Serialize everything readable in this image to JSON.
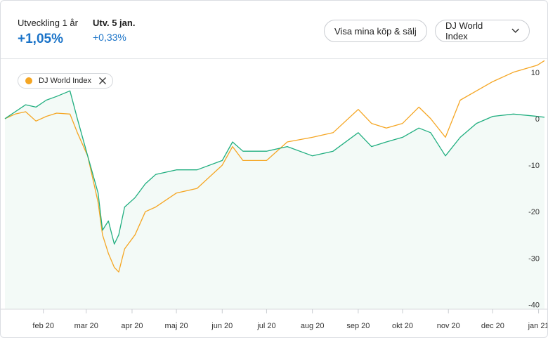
{
  "header": {
    "dev_1y_label": "Utveckling 1 år",
    "dev_1y_value": "+1,05%",
    "dev_jan5_label": "Utv. 5 jan.",
    "dev_jan5_value": "+0,33%",
    "show_trades_button": "Visa mina köp & sälj",
    "compare_select": "DJ World Index"
  },
  "legend": {
    "chip_label": "DJ World Index",
    "chip_color": "#f5a623"
  },
  "colors": {
    "positive": "#1a73c8",
    "primary_line": "#1fae7f",
    "compare_line": "#f5a623"
  },
  "chart_data": {
    "type": "line",
    "x_tick_labels": [
      "feb 20",
      "mar 20",
      "apr 20",
      "maj 20",
      "jun 20",
      "jul 20",
      "aug 20",
      "sep 20",
      "okt 20",
      "nov 20",
      "dec 20",
      "jan 21"
    ],
    "y_ticks": [
      10,
      0,
      -10,
      -20,
      -30,
      -40
    ],
    "ylim": [
      -41,
      13
    ],
    "grid": false,
    "series": [
      {
        "name": "",
        "color": "#1fae7f",
        "points": [
          [
            "2020-01-06",
            0
          ],
          [
            "2020-01-13",
            1.5
          ],
          [
            "2020-01-20",
            3
          ],
          [
            "2020-01-27",
            2.5
          ],
          [
            "2020-02-03",
            4
          ],
          [
            "2020-02-10",
            4.8
          ],
          [
            "2020-02-19",
            6
          ],
          [
            "2020-02-24",
            0
          ],
          [
            "2020-03-02",
            -8
          ],
          [
            "2020-03-09",
            -16
          ],
          [
            "2020-03-12",
            -24
          ],
          [
            "2020-03-16",
            -22
          ],
          [
            "2020-03-20",
            -27
          ],
          [
            "2020-03-23",
            -25
          ],
          [
            "2020-03-27",
            -19
          ],
          [
            "2020-04-03",
            -17
          ],
          [
            "2020-04-10",
            -14
          ],
          [
            "2020-04-17",
            -12
          ],
          [
            "2020-05-01",
            -11
          ],
          [
            "2020-05-15",
            -11
          ],
          [
            "2020-06-01",
            -9
          ],
          [
            "2020-06-08",
            -5
          ],
          [
            "2020-06-15",
            -7
          ],
          [
            "2020-07-01",
            -7
          ],
          [
            "2020-07-15",
            -6
          ],
          [
            "2020-08-01",
            -8
          ],
          [
            "2020-08-15",
            -7
          ],
          [
            "2020-09-01",
            -3
          ],
          [
            "2020-09-10",
            -6
          ],
          [
            "2020-09-20",
            -5
          ],
          [
            "2020-10-01",
            -4
          ],
          [
            "2020-10-12",
            -2
          ],
          [
            "2020-10-20",
            -3
          ],
          [
            "2020-10-30",
            -8
          ],
          [
            "2020-11-09",
            -4
          ],
          [
            "2020-11-20",
            -1
          ],
          [
            "2020-12-01",
            0.5
          ],
          [
            "2020-12-15",
            1
          ],
          [
            "2020-12-31",
            0.5
          ],
          [
            "2021-01-05",
            0.33
          ]
        ]
      },
      {
        "name": "DJ World Index",
        "color": "#f5a623",
        "points": [
          [
            "2020-01-06",
            0
          ],
          [
            "2020-01-13",
            1
          ],
          [
            "2020-01-20",
            1.5
          ],
          [
            "2020-01-27",
            -0.5
          ],
          [
            "2020-02-03",
            0.5
          ],
          [
            "2020-02-10",
            1.2
          ],
          [
            "2020-02-19",
            1
          ],
          [
            "2020-02-24",
            -3
          ],
          [
            "2020-03-02",
            -8
          ],
          [
            "2020-03-09",
            -18
          ],
          [
            "2020-03-12",
            -25
          ],
          [
            "2020-03-16",
            -29
          ],
          [
            "2020-03-20",
            -32
          ],
          [
            "2020-03-23",
            -33
          ],
          [
            "2020-03-27",
            -28
          ],
          [
            "2020-04-03",
            -25
          ],
          [
            "2020-04-10",
            -20
          ],
          [
            "2020-04-17",
            -19
          ],
          [
            "2020-05-01",
            -16
          ],
          [
            "2020-05-15",
            -15
          ],
          [
            "2020-06-01",
            -10
          ],
          [
            "2020-06-08",
            -6
          ],
          [
            "2020-06-15",
            -9
          ],
          [
            "2020-07-01",
            -9
          ],
          [
            "2020-07-15",
            -5
          ],
          [
            "2020-08-01",
            -4
          ],
          [
            "2020-08-15",
            -3
          ],
          [
            "2020-09-01",
            2
          ],
          [
            "2020-09-10",
            -1
          ],
          [
            "2020-09-20",
            -2
          ],
          [
            "2020-10-01",
            -1
          ],
          [
            "2020-10-12",
            2.5
          ],
          [
            "2020-10-20",
            0
          ],
          [
            "2020-10-30",
            -4
          ],
          [
            "2020-11-09",
            4
          ],
          [
            "2020-11-20",
            6
          ],
          [
            "2020-12-01",
            8
          ],
          [
            "2020-12-15",
            10
          ],
          [
            "2020-12-31",
            11.5
          ],
          [
            "2021-01-05",
            12.5
          ]
        ]
      }
    ]
  }
}
